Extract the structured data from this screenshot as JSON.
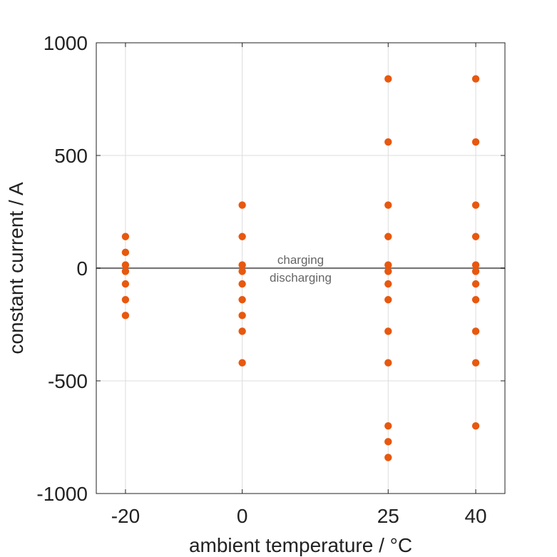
{
  "chart_data": {
    "type": "scatter",
    "xlabel": "ambient temperature / °C",
    "ylabel": "constant current / A",
    "xticks": [
      -20,
      0,
      25,
      40
    ],
    "yticks": [
      -1000,
      -500,
      0,
      500,
      1000
    ],
    "xlim": [
      -25,
      45
    ],
    "ylim": [
      -1000,
      1000
    ],
    "grid": true,
    "marker_color": "#E8580E",
    "reference_line": {
      "y": 0,
      "color": "#777777"
    },
    "annotations": {
      "above": "charging",
      "below": "discharging"
    },
    "points": [
      {
        "x": -20,
        "y": 140
      },
      {
        "x": -20,
        "y": 70
      },
      {
        "x": -20,
        "y": 14
      },
      {
        "x": -20,
        "y": -14
      },
      {
        "x": -20,
        "y": -70
      },
      {
        "x": -20,
        "y": -140
      },
      {
        "x": -20,
        "y": -210
      },
      {
        "x": 0,
        "y": 280
      },
      {
        "x": 0,
        "y": 140
      },
      {
        "x": 0,
        "y": 14
      },
      {
        "x": 0,
        "y": -14
      },
      {
        "x": 0,
        "y": -70
      },
      {
        "x": 0,
        "y": -140
      },
      {
        "x": 0,
        "y": -210
      },
      {
        "x": 0,
        "y": -280
      },
      {
        "x": 0,
        "y": -420
      },
      {
        "x": 25,
        "y": 840
      },
      {
        "x": 25,
        "y": 560
      },
      {
        "x": 25,
        "y": 280
      },
      {
        "x": 25,
        "y": 140
      },
      {
        "x": 25,
        "y": 14
      },
      {
        "x": 25,
        "y": -14
      },
      {
        "x": 25,
        "y": -70
      },
      {
        "x": 25,
        "y": -140
      },
      {
        "x": 25,
        "y": -280
      },
      {
        "x": 25,
        "y": -420
      },
      {
        "x": 25,
        "y": -700
      },
      {
        "x": 25,
        "y": -770
      },
      {
        "x": 25,
        "y": -840
      },
      {
        "x": 40,
        "y": 840
      },
      {
        "x": 40,
        "y": 560
      },
      {
        "x": 40,
        "y": 280
      },
      {
        "x": 40,
        "y": 140
      },
      {
        "x": 40,
        "y": 14
      },
      {
        "x": 40,
        "y": -14
      },
      {
        "x": 40,
        "y": -70
      },
      {
        "x": 40,
        "y": -140
      },
      {
        "x": 40,
        "y": -280
      },
      {
        "x": 40,
        "y": -420
      },
      {
        "x": 40,
        "y": -700
      }
    ]
  }
}
